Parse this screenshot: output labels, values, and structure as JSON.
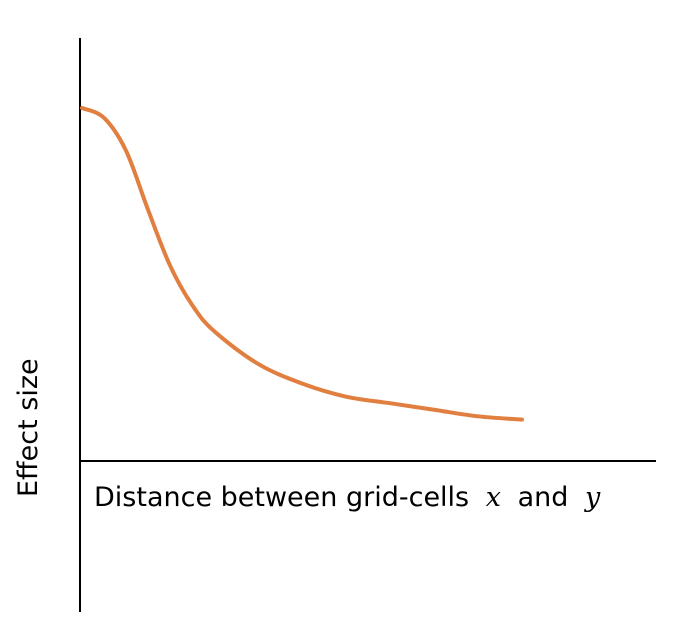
{
  "chart_data": {
    "type": "line",
    "title": "",
    "xlabel": {
      "text": "Distance between grid-cells",
      "var_x": "x",
      "conjunction": "and",
      "var_y": "y"
    },
    "ylabel": "Effect size",
    "grid": false,
    "legend": "none",
    "line_color": "#E07F3F",
    "xlim": [
      0,
      1
    ],
    "ylim": [
      0,
      1
    ],
    "series": [
      {
        "x": [
          0.0,
          0.05,
          0.1,
          0.15,
          0.2,
          0.25,
          0.3,
          0.4,
          0.5,
          0.6,
          0.7,
          0.8,
          0.9,
          1.0
        ],
        "y": [
          1.0,
          0.97,
          0.87,
          0.69,
          0.52,
          0.4,
          0.32,
          0.22,
          0.16,
          0.12,
          0.1,
          0.08,
          0.06,
          0.05
        ]
      }
    ]
  }
}
